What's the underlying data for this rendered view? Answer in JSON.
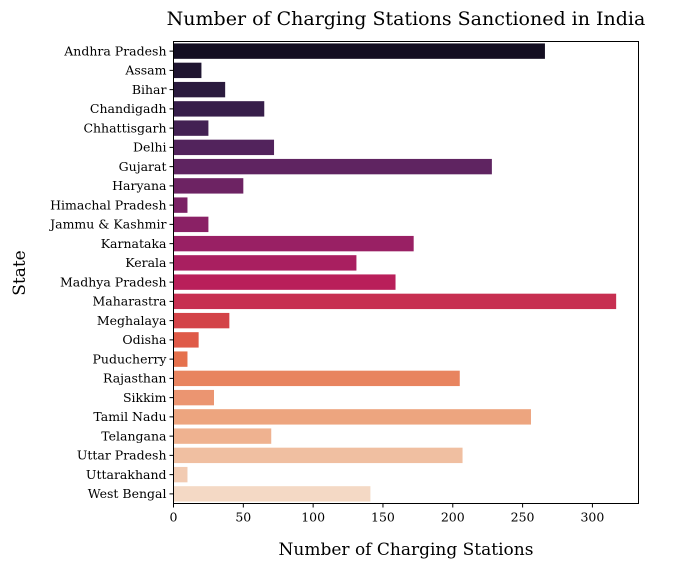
{
  "chart_data": {
    "type": "bar",
    "orientation": "horizontal",
    "title": "Number of Charging Stations Sanctioned in India",
    "xlabel": "Number of Charging Stations",
    "ylabel": "State",
    "xlim": [
      0,
      333
    ],
    "xticks": [
      0,
      50,
      100,
      150,
      200,
      250,
      300
    ],
    "grid": false,
    "categories": [
      "Andhra Pradesh",
      "Assam",
      "Bihar",
      "Chandigadh",
      "Chhattisgarh",
      "Delhi",
      "Gujarat",
      "Haryana",
      "Himachal Pradesh",
      "Jammu & Kashmir",
      "Karnataka",
      "Kerala",
      "Madhya Pradesh",
      "Maharastra",
      "Meghalaya",
      "Odisha",
      "Puducherry",
      "Rajasthan",
      "Sikkim",
      "Tamil Nadu",
      "Telangana",
      "Uttar Pradesh",
      "Uttarakhand",
      "West Bengal"
    ],
    "values": [
      266,
      20,
      37,
      65,
      25,
      72,
      228,
      50,
      10,
      25,
      172,
      131,
      159,
      317,
      40,
      18,
      10,
      205,
      29,
      256,
      70,
      207,
      10,
      141
    ],
    "colors": [
      "#140f22",
      "#1f1530",
      "#2b1b3e",
      "#371e4a",
      "#432153",
      "#52235c",
      "#5f2461",
      "#6d2363",
      "#7b2265",
      "#8a2165",
      "#992064",
      "#a91f60",
      "#b91f5a",
      "#c72f51",
      "#d34348",
      "#df5a48",
      "#e5714d",
      "#e8845f",
      "#eb9571",
      "#eda57f",
      "#efb290",
      "#f0bfa1",
      "#f2cbb2",
      "#f4d9c5"
    ]
  }
}
